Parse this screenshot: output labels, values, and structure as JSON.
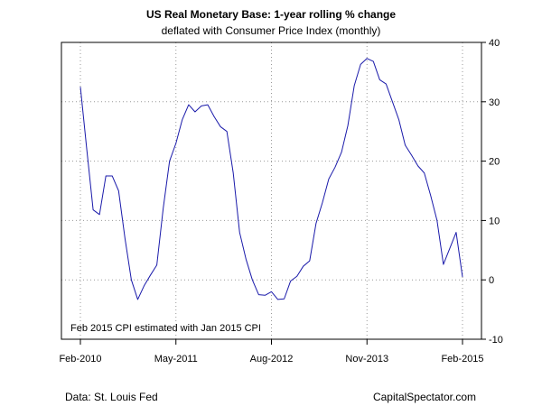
{
  "chart_data": {
    "type": "line",
    "title": "US Real Monetary Base: 1-year rolling % change",
    "subtitle": "deflated with Consumer Price Index (monthly)",
    "xlabel": "",
    "ylabel": "",
    "ylim": [
      -10,
      40
    ],
    "yticks": [
      -10,
      0,
      10,
      20,
      30,
      40
    ],
    "y_axis_side": "right",
    "xlim": [
      "2010-02",
      "2015-02"
    ],
    "xtick_labels": [
      "Feb-2010",
      "May-2011",
      "Aug-2012",
      "Nov-2013",
      "Feb-2015"
    ],
    "xtick_positions": [
      "2010-02",
      "2011-05",
      "2012-08",
      "2013-11",
      "2015-02"
    ],
    "grid": true,
    "grid_style": "dotted",
    "line_color": "#1a1aaa",
    "annotation": "Feb 2015 CPI estimated with Jan 2015 CPI",
    "x": [
      "2010-02",
      "2010-03",
      "2010-04",
      "2010-05",
      "2010-06",
      "2010-07",
      "2010-08",
      "2010-09",
      "2010-10",
      "2010-11",
      "2010-12",
      "2011-01",
      "2011-02",
      "2011-03",
      "2011-04",
      "2011-05",
      "2011-06",
      "2011-07",
      "2011-08",
      "2011-09",
      "2011-10",
      "2011-11",
      "2011-12",
      "2012-01",
      "2012-02",
      "2012-03",
      "2012-04",
      "2012-05",
      "2012-06",
      "2012-07",
      "2012-08",
      "2012-09",
      "2012-10",
      "2012-11",
      "2012-12",
      "2013-01",
      "2013-02",
      "2013-03",
      "2013-04",
      "2013-05",
      "2013-06",
      "2013-07",
      "2013-08",
      "2013-09",
      "2013-10",
      "2013-11",
      "2013-12",
      "2014-01",
      "2014-02",
      "2014-03",
      "2014-04",
      "2014-05",
      "2014-06",
      "2014-07",
      "2014-08",
      "2014-09",
      "2014-10",
      "2014-11",
      "2014-12",
      "2015-01",
      "2015-02"
    ],
    "series": [
      {
        "values": [
          32.5,
          22.0,
          11.8,
          11.0,
          17.5,
          17.5,
          15.0,
          7.0,
          0.0,
          -3.3,
          -1.0,
          0.8,
          2.5,
          12.0,
          20.0,
          23.0,
          27.0,
          29.5,
          28.3,
          29.3,
          29.5,
          27.5,
          25.8,
          25.0,
          18.0,
          8.0,
          3.5,
          0.0,
          -2.5,
          -2.6,
          -2.0,
          -3.3,
          -3.2,
          -0.2,
          0.6,
          2.3,
          3.2,
          9.5,
          13.0,
          17.0,
          19.0,
          21.5,
          26.0,
          32.7,
          36.3,
          37.3,
          36.8,
          33.7,
          33.0,
          30.0,
          27.0,
          22.7,
          21.0,
          19.2,
          18.0,
          14.2,
          10.0,
          2.6,
          5.3,
          8.0,
          0.5
        ]
      }
    ]
  },
  "footer": {
    "source": "Data: St. Louis Fed",
    "credit": "CapitalSpectator.com"
  }
}
